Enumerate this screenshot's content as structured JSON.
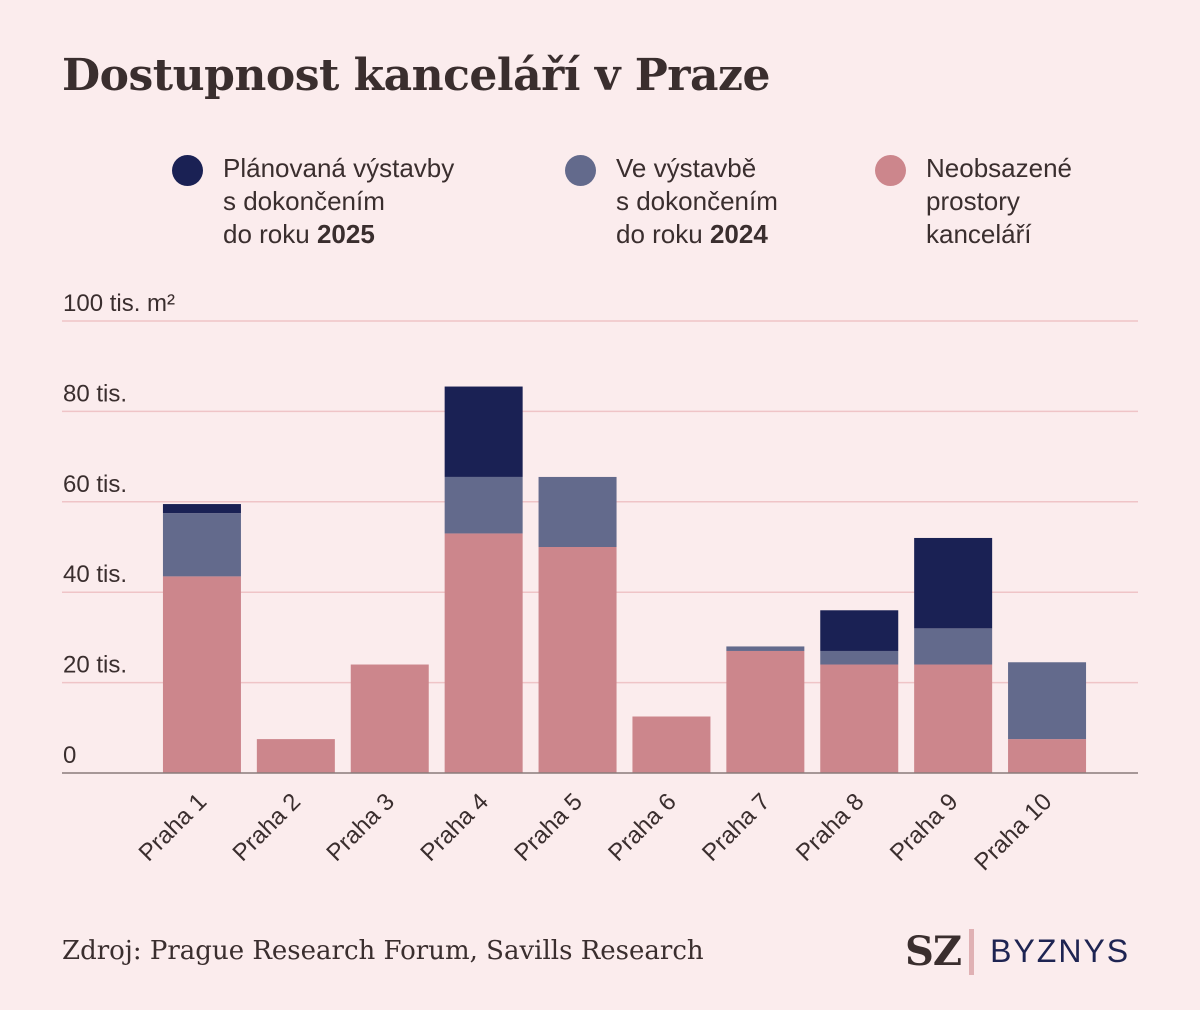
{
  "title": "Dostupnost kanceláří v Praze",
  "legend": [
    {
      "lines": [
        "Plánovaná výstavby",
        "s dokončením"
      ],
      "prefix": "do roku ",
      "bold": "2025",
      "color": "#1a2154"
    },
    {
      "lines": [
        "Ve výstavbě",
        "s dokončením"
      ],
      "prefix": "do roku ",
      "bold": "2024",
      "color": "#636a8c"
    },
    {
      "lines": [
        "Neobsazené",
        "prostory",
        "kanceláří"
      ],
      "prefix": "",
      "bold": "",
      "color": "#cc868c"
    }
  ],
  "chart_data": {
    "type": "bar",
    "stacked": true,
    "categories": [
      "Praha 1",
      "Praha 2",
      "Praha 3",
      "Praha 4",
      "Praha 5",
      "Praha 6",
      "Praha 7",
      "Praha 8",
      "Praha 9",
      "Praha 10"
    ],
    "series": [
      {
        "name": "Neobsazené prostory kanceláří",
        "color": "#cc868c",
        "values": [
          43500,
          7500,
          24000,
          53000,
          50000,
          12500,
          27000,
          24000,
          24000,
          7500
        ]
      },
      {
        "name": "Ve výstavbě s dokončením do roku 2024",
        "color": "#636a8c",
        "values": [
          14000,
          0,
          0,
          12500,
          15500,
          0,
          1000,
          3000,
          8000,
          17000
        ]
      },
      {
        "name": "Plánovaná výstavby s dokončením do roku 2025",
        "color": "#1a2154",
        "values": [
          2000,
          0,
          0,
          20000,
          0,
          0,
          0,
          9000,
          20000,
          0
        ]
      }
    ],
    "yticks": [
      {
        "value": 0,
        "label": "0"
      },
      {
        "value": 20000,
        "label": "20 tis."
      },
      {
        "value": 40000,
        "label": "40 tis."
      },
      {
        "value": 60000,
        "label": "60 tis."
      },
      {
        "value": 80000,
        "label": "80 tis."
      },
      {
        "value": 100000,
        "label": "100 tis. m²"
      }
    ],
    "ylim": [
      0,
      100000
    ],
    "grid_color": "#efc4c7",
    "axis_color": "#8a7b7b"
  },
  "source": "Zdroj: Prague Research Forum, Savills Research",
  "logo": {
    "sz": "SZ",
    "byznys": "BYZNYS"
  }
}
